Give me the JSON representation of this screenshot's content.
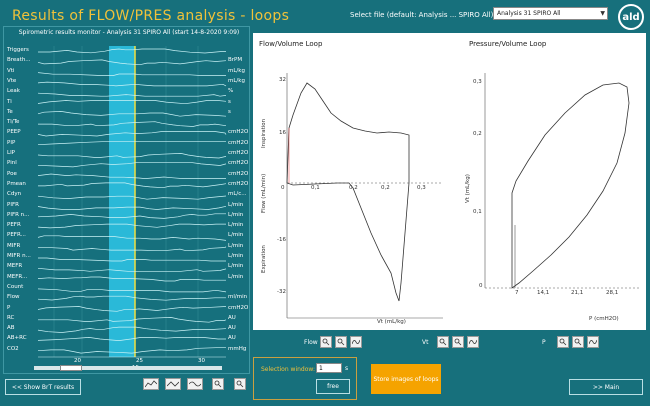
{
  "header": {
    "title": "Results of FLOW/PRES analysis - loops",
    "select_label": "Select file (default: Analysis ... SPIRO All):",
    "select_value": "Analysis 31 SPIRO All",
    "logo_text": "ald"
  },
  "monitor": {
    "title": "Spirometric results monitor - Analysis 31 SPIRO All (start 14-8-2020 9:09)",
    "channels": [
      {
        "label": "Triggers",
        "unit": ""
      },
      {
        "label": "Breath...",
        "unit": "BrPM"
      },
      {
        "label": "Vti",
        "unit": "mL/kg"
      },
      {
        "label": "Vte",
        "unit": "mL/kg"
      },
      {
        "label": "Leak",
        "unit": "%"
      },
      {
        "label": "Ti",
        "unit": "s"
      },
      {
        "label": "Te",
        "unit": "s"
      },
      {
        "label": "Ti/Te",
        "unit": ""
      },
      {
        "label": "PEEP",
        "unit": "cmH2O"
      },
      {
        "label": "PIP",
        "unit": "cmH2O"
      },
      {
        "label": "LIP",
        "unit": "cmH2O"
      },
      {
        "label": "Pinl",
        "unit": "cmH2O"
      },
      {
        "label": "Poe",
        "unit": "cmH2O"
      },
      {
        "label": "Pmean",
        "unit": "cmH2O"
      },
      {
        "label": "Cdyn",
        "unit": "mL/c..."
      },
      {
        "label": "PIFR",
        "unit": "L/min"
      },
      {
        "label": "PIFR n...",
        "unit": "L/min"
      },
      {
        "label": "PEFR",
        "unit": "L/min"
      },
      {
        "label": "PEFR...",
        "unit": "L/min"
      },
      {
        "label": "MIFR",
        "unit": "L/min"
      },
      {
        "label": "MIFR n...",
        "unit": "L/min"
      },
      {
        "label": "MEFR",
        "unit": "L/min"
      },
      {
        "label": "MEFR...",
        "unit": "L/min"
      },
      {
        "label": "Count",
        "unit": ""
      },
      {
        "label": "Flow",
        "unit": "ml/min"
      },
      {
        "label": "P",
        "unit": "cmH2O"
      },
      {
        "label": "RC",
        "unit": "AU"
      },
      {
        "label": "AB",
        "unit": "AU"
      },
      {
        "label": "AB+RC",
        "unit": "AU"
      },
      {
        "label": "CO2",
        "unit": "mmHg"
      }
    ],
    "x_ticks": [
      "20",
      "25",
      "30"
    ],
    "x_unit": "15 s"
  },
  "flow_loop": {
    "title": "Flow/Volume Loop",
    "y_axis_label": "Flow (mL/min)",
    "inspiration_label": "Inspiration",
    "expiration_label": "Expiration",
    "x_axis_label": "Vt (mL/kg)",
    "y_ticks": [
      "32",
      "16",
      "0",
      "-16",
      "-32"
    ],
    "x_ticks": [
      "0,1",
      "0,2",
      "0,2",
      "0,3"
    ]
  },
  "pressure_loop": {
    "title": "Pressure/Volume Loop",
    "y_axis_label": "Vt (mL/kg)",
    "x_axis_label": "P (cmH2O)",
    "y_ticks": [
      "0,3",
      "0,2",
      "0,1",
      "0"
    ],
    "x_ticks": [
      "7",
      "14,1",
      "21,1",
      "28,1"
    ]
  },
  "controls": {
    "flow_label": "Flow",
    "vt_label": "Vt",
    "p_label": "P",
    "selection_window_label": "Selection window:",
    "selection_window_value": "1",
    "selection_unit": "s",
    "free_button": "free",
    "store_button": "Store images of loops",
    "show_brt_button": "<< Show BrT results",
    "main_button": ">> Main"
  },
  "colors": {
    "background": "#17707c",
    "title": "#f0c23a",
    "store_button": "#f5a300",
    "selection_band": "#2ec5e8",
    "cursor_line": "#f0e040"
  }
}
